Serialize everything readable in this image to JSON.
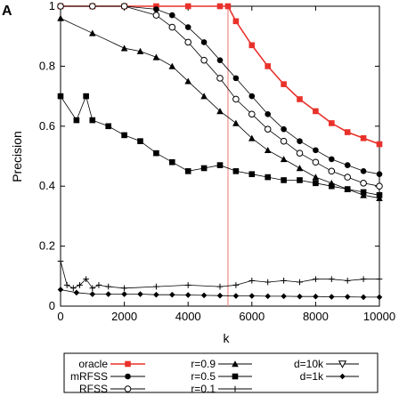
{
  "panel_label": "A",
  "colors": {
    "oracle": "#e8312a",
    "black": "#000000",
    "threshold": "#f08a88"
  },
  "chart_data": {
    "type": "line",
    "title": "",
    "xlabel": "k",
    "ylabel": "Precision",
    "xlim": [
      0,
      10000
    ],
    "ylim": [
      0,
      1
    ],
    "xticks": [
      "0",
      "2000",
      "4000",
      "6000",
      "8000",
      "10000"
    ],
    "yticks": [
      "0",
      "0.2",
      "0.4",
      "0.6",
      "0.8",
      "1"
    ],
    "threshold_x": 5250,
    "grid": false,
    "legend_position": "bottom",
    "legend": [
      {
        "label": "oracle",
        "marker": "square-filled-red"
      },
      {
        "label": "mRFSS",
        "marker": "circle-filled"
      },
      {
        "label": "RFSS",
        "marker": "circle-open"
      },
      {
        "label": "r=0.9",
        "marker": "triangle-filled"
      },
      {
        "label": "r=0.5",
        "marker": "square-filled"
      },
      {
        "label": "r=0.1",
        "marker": "plus"
      },
      {
        "label": "d=10k",
        "marker": "triangle-down-open"
      },
      {
        "label": "d=1k",
        "marker": "diamond-filled"
      }
    ],
    "series": [
      {
        "name": "oracle",
        "x": [
          0,
          1000,
          2000,
          3000,
          4000,
          5000,
          5250,
          5500,
          6000,
          6500,
          7000,
          7500,
          8000,
          8500,
          9000,
          9500,
          10000
        ],
        "y": [
          1,
          1,
          1,
          1,
          1,
          1,
          1,
          0.95,
          0.87,
          0.8,
          0.74,
          0.69,
          0.65,
          0.61,
          0.58,
          0.56,
          0.54
        ]
      },
      {
        "name": "mRFSS",
        "x": [
          0,
          1000,
          2000,
          3000,
          3500,
          4000,
          4500,
          5000,
          5500,
          6000,
          6500,
          7000,
          7500,
          8000,
          8500,
          9000,
          9500,
          10000
        ],
        "y": [
          1,
          1,
          1,
          0.99,
          0.97,
          0.93,
          0.88,
          0.82,
          0.76,
          0.7,
          0.64,
          0.59,
          0.55,
          0.52,
          0.49,
          0.47,
          0.45,
          0.44
        ]
      },
      {
        "name": "RFSS",
        "x": [
          0,
          1000,
          2000,
          3000,
          3500,
          4000,
          4500,
          5000,
          5500,
          6000,
          6500,
          7000,
          7500,
          8000,
          8500,
          9000,
          9500,
          10000
        ],
        "y": [
          1,
          1,
          1,
          0.97,
          0.93,
          0.88,
          0.82,
          0.76,
          0.69,
          0.64,
          0.59,
          0.55,
          0.51,
          0.48,
          0.45,
          0.43,
          0.41,
          0.4
        ]
      },
      {
        "name": "r=0.9",
        "x": [
          0,
          1000,
          2000,
          2500,
          3000,
          3500,
          4000,
          4500,
          5000,
          5500,
          6000,
          6500,
          7000,
          7500,
          8000,
          8500,
          9000,
          9500,
          10000
        ],
        "y": [
          0.96,
          0.91,
          0.86,
          0.85,
          0.83,
          0.8,
          0.75,
          0.7,
          0.65,
          0.61,
          0.56,
          0.52,
          0.49,
          0.46,
          0.43,
          0.41,
          0.39,
          0.37,
          0.36
        ]
      },
      {
        "name": "r=0.5",
        "x": [
          0,
          500,
          800,
          1000,
          1500,
          2000,
          2500,
          3000,
          3500,
          4000,
          4500,
          5000,
          5500,
          6000,
          6500,
          7000,
          7500,
          8000,
          8500,
          9000,
          9500,
          10000
        ],
        "y": [
          0.7,
          0.62,
          0.7,
          0.62,
          0.6,
          0.57,
          0.55,
          0.51,
          0.48,
          0.45,
          0.46,
          0.47,
          0.45,
          0.44,
          0.43,
          0.42,
          0.42,
          0.41,
          0.4,
          0.39,
          0.38,
          0.37
        ]
      },
      {
        "name": "r=0.1",
        "x": [
          0,
          200,
          400,
          600,
          800,
          1000,
          1200,
          1500,
          2000,
          3000,
          4000,
          5000,
          5500,
          6000,
          6500,
          7000,
          7500,
          8000,
          8500,
          9000,
          9500,
          10000
        ],
        "y": [
          0.15,
          0.07,
          0.06,
          0.07,
          0.09,
          0.06,
          0.07,
          0.065,
          0.06,
          0.065,
          0.07,
          0.065,
          0.07,
          0.085,
          0.08,
          0.085,
          0.08,
          0.09,
          0.09,
          0.085,
          0.09,
          0.09
        ]
      },
      {
        "name": "d=10k",
        "x": [],
        "y": []
      },
      {
        "name": "d=1k",
        "x": [
          0,
          500,
          1000,
          1500,
          2000,
          2500,
          3000,
          3500,
          4000,
          4500,
          5000,
          5500,
          6000,
          6500,
          7000,
          7500,
          8000,
          8500,
          9000,
          9500,
          10000
        ],
        "y": [
          0.055,
          0.045,
          0.04,
          0.04,
          0.04,
          0.04,
          0.038,
          0.038,
          0.037,
          0.036,
          0.035,
          0.034,
          0.034,
          0.033,
          0.033,
          0.032,
          0.032,
          0.031,
          0.031,
          0.03,
          0.03
        ]
      }
    ]
  }
}
